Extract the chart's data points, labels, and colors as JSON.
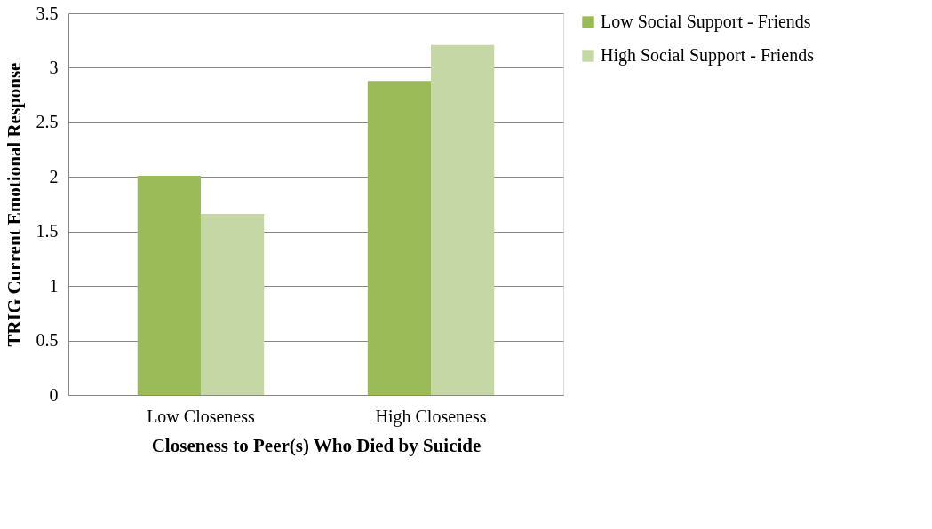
{
  "chart_data": {
    "type": "bar",
    "xlabel": "Closeness to Peer(s) Who Died by Suicide",
    "ylabel": "TRIG Current Emotional Response",
    "categories": [
      "Low Closeness",
      "High Closeness"
    ],
    "series": [
      {
        "name": "Low Social Support - Friends",
        "color": "#9bbb59",
        "values": [
          2.01,
          2.88
        ]
      },
      {
        "name": "High Social Support - Friends",
        "color": "#c4d7a4",
        "values": [
          1.66,
          3.21
        ]
      }
    ],
    "ylim": [
      0,
      3.5
    ],
    "yticks": [
      0,
      0.5,
      1,
      1.5,
      2,
      2.5,
      3,
      3.5
    ],
    "grid": "y",
    "legend": "right"
  }
}
